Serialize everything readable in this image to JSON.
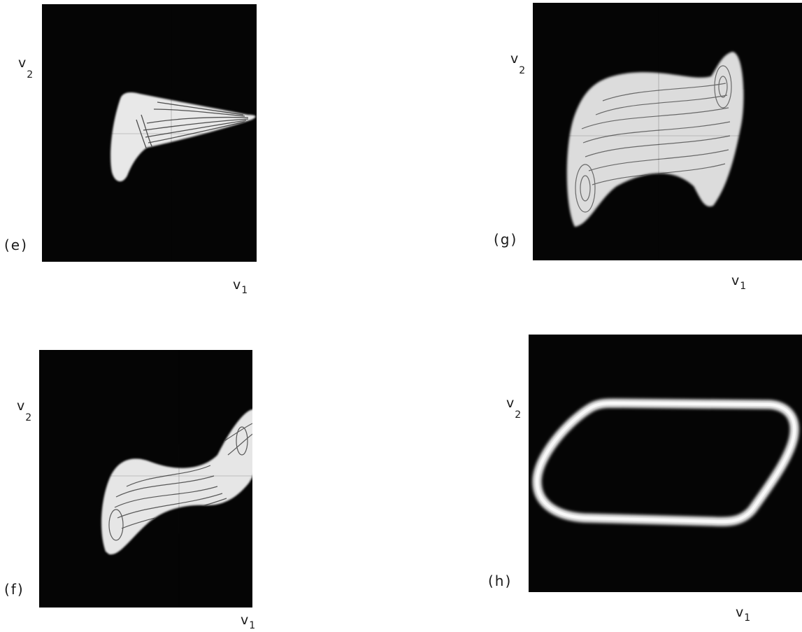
{
  "panels": [
    {
      "label": "(e)",
      "xlabel": {
        "base": "v",
        "sub": "1"
      },
      "ylabel": {
        "base": "v",
        "sub": "2"
      }
    },
    {
      "label": "(f)",
      "xlabel": {
        "base": "v",
        "sub": "1"
      },
      "ylabel": {
        "base": "v",
        "sub": "2"
      }
    },
    {
      "label": "(g)",
      "xlabel": {
        "base": "v",
        "sub": "1"
      },
      "ylabel": {
        "base": "v",
        "sub": "2"
      }
    },
    {
      "label": "(h)",
      "xlabel": {
        "base": "v",
        "sub": "1"
      },
      "ylabel": {
        "base": "v",
        "sub": "2"
      }
    }
  ]
}
